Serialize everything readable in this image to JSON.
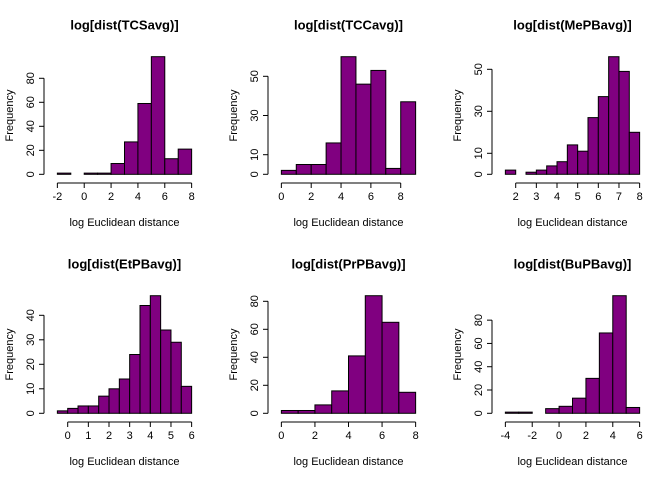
{
  "chart_data": [
    {
      "type": "histogram",
      "title": "log[dist(TCSavg)]",
      "xlabel": "log Euclidean distance",
      "ylabel": "Frequency",
      "color": "#800080",
      "bins": [
        -2,
        -1,
        0,
        1,
        2,
        3,
        4,
        5,
        6,
        7,
        8
      ],
      "values": [
        1,
        0,
        1,
        1,
        9,
        27,
        59,
        98,
        13,
        21
      ],
      "xlim": [
        -2.4,
        8.4
      ],
      "ylim": [
        -3.9,
        101.9
      ],
      "xticks": [
        -2,
        0,
        2,
        4,
        6,
        8
      ],
      "yticks": [
        0,
        20,
        40,
        60,
        80
      ]
    },
    {
      "type": "histogram",
      "title": "log[dist(TCCavg)]",
      "xlabel": "log Euclidean distance",
      "ylabel": "Frequency",
      "color": "#800080",
      "bins": [
        0,
        1,
        2,
        3,
        4,
        5,
        6,
        7,
        8,
        9
      ],
      "values": [
        2,
        5,
        5,
        16,
        60,
        46,
        53,
        3,
        37
      ],
      "xlim": [
        -0.36,
        9.36
      ],
      "ylim": [
        -2.4,
        62.4
      ],
      "xticks": [
        0,
        2,
        4,
        6,
        8
      ],
      "yticks": [
        0,
        10,
        30,
        50
      ]
    },
    {
      "type": "histogram",
      "title": "log[dist(MePBavg)]",
      "xlabel": "log Euclidean distance",
      "ylabel": "Frequency",
      "color": "#800080",
      "bins": [
        1.5,
        2,
        2.5,
        3,
        3.5,
        4,
        4.5,
        5,
        5.5,
        6,
        6.5,
        7,
        7.5,
        8
      ],
      "values": [
        2,
        0,
        1,
        2,
        4,
        6,
        14,
        11,
        27,
        37,
        56,
        49,
        20
      ],
      "xlim": [
        1.24,
        8.26
      ],
      "ylim": [
        -2.24,
        58.24
      ],
      "xticks": [
        2,
        3,
        4,
        5,
        6,
        7,
        8
      ],
      "yticks": [
        0,
        10,
        30,
        50
      ]
    },
    {
      "type": "histogram",
      "title": "log[dist(EtPBavg)]",
      "xlabel": "log Euclidean distance",
      "ylabel": "Frequency",
      "color": "#800080",
      "bins": [
        -0.5,
        0,
        0.5,
        1,
        1.5,
        2,
        2.5,
        3,
        3.5,
        4,
        4.5,
        5,
        5.5,
        6
      ],
      "values": [
        1,
        2,
        3,
        3,
        7,
        10,
        14,
        24,
        44,
        48,
        34,
        29,
        11
      ],
      "xlim": [
        -0.76,
        6.26
      ],
      "ylim": [
        -1.92,
        49.92
      ],
      "xticks": [
        0,
        1,
        2,
        3,
        4,
        5,
        6
      ],
      "yticks": [
        0,
        10,
        20,
        30,
        40
      ]
    },
    {
      "type": "histogram",
      "title": "log[dist(PrPBavg)]",
      "xlabel": "log Euclidean distance",
      "ylabel": "Frequency",
      "color": "#800080",
      "bins": [
        0,
        1,
        2,
        3,
        4,
        5,
        6,
        7,
        8
      ],
      "values": [
        2,
        2,
        6,
        16,
        41,
        84,
        65,
        15
      ],
      "xlim": [
        -0.32,
        8.32
      ],
      "ylim": [
        -3.36,
        87.36
      ],
      "xticks": [
        0,
        2,
        4,
        6,
        8
      ],
      "yticks": [
        0,
        20,
        40,
        60,
        80
      ]
    },
    {
      "type": "histogram",
      "title": "log[dist(BuPBavg)]",
      "xlabel": "log Euclidean distance",
      "ylabel": "Frequency",
      "color": "#800080",
      "bins": [
        -4,
        -3,
        -2,
        -1,
        0,
        1,
        2,
        3,
        4,
        5,
        6
      ],
      "values": [
        1,
        1,
        0,
        4,
        6,
        13,
        30,
        69,
        101,
        5
      ],
      "xlim": [
        -4.4,
        6.4
      ],
      "ylim": [
        -4.04,
        105.04
      ],
      "xticks": [
        -4,
        -2,
        0,
        2,
        4,
        6
      ],
      "yticks": [
        0,
        20,
        40,
        60,
        80
      ]
    }
  ]
}
